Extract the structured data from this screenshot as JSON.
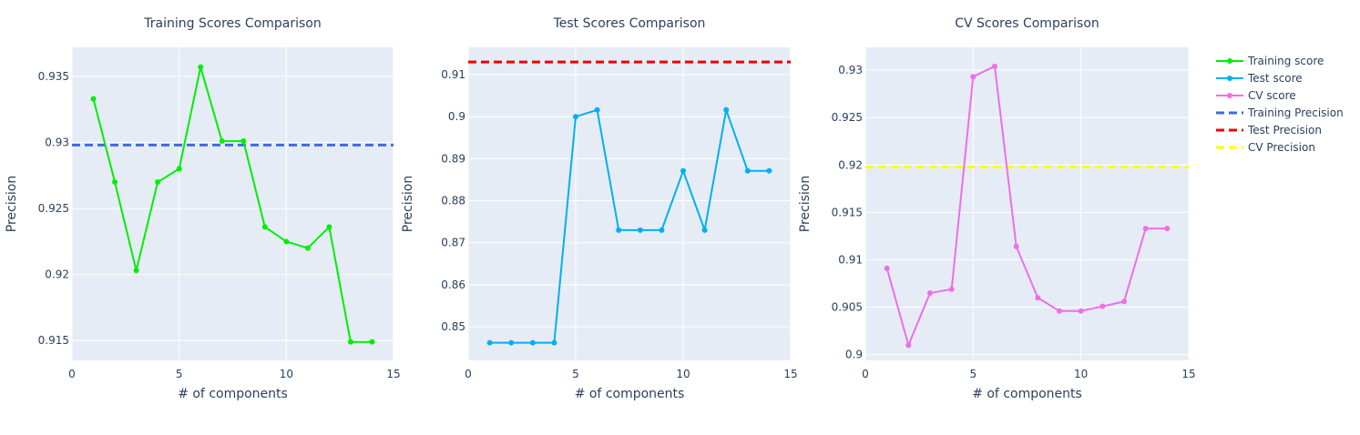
{
  "chart_data": [
    {
      "type": "line",
      "title": "Training Scores Comparison",
      "xlabel": "# of components",
      "ylabel": "Precision",
      "xlim": [
        0,
        15
      ],
      "ylim": [
        0.9135,
        0.9372
      ],
      "xticks": [
        0,
        5,
        10,
        15
      ],
      "xtick_labels": [
        "0",
        "5",
        "10",
        "15"
      ],
      "yticks": [
        0.915,
        0.92,
        0.925,
        0.93,
        0.935
      ],
      "ytick_labels": [
        "0.915",
        "0.92",
        "0.925",
        "0.93",
        "0.935"
      ],
      "grid": true,
      "series": [
        {
          "name": "Training score",
          "color": "#00ee00",
          "x": [
            1,
            2,
            3,
            4,
            5,
            6,
            7,
            8,
            9,
            10,
            11,
            12,
            13,
            14
          ],
          "values": [
            0.9333,
            0.927,
            0.9203,
            0.927,
            0.928,
            0.9357,
            0.9301,
            0.9301,
            0.9236,
            0.9225,
            0.922,
            0.9236,
            0.9149,
            0.9149
          ]
        }
      ],
      "hlines": [
        {
          "name": "Training Precision",
          "value": 0.9298,
          "color": "#4169e1"
        }
      ]
    },
    {
      "type": "line",
      "title": "Test Scores Comparison",
      "xlabel": "# of components",
      "ylabel": "Precision",
      "xlim": [
        0,
        15
      ],
      "ylim": [
        0.842,
        0.9165
      ],
      "xticks": [
        0,
        5,
        10,
        15
      ],
      "xtick_labels": [
        "0",
        "5",
        "10",
        "15"
      ],
      "yticks": [
        0.85,
        0.86,
        0.87,
        0.88,
        0.89,
        0.9,
        0.91
      ],
      "ytick_labels": [
        "0.85",
        "0.86",
        "0.87",
        "0.88",
        "0.89",
        "0.9",
        "0.91"
      ],
      "grid": true,
      "series": [
        {
          "name": "Test score",
          "color": "#00b0ee",
          "x": [
            1,
            2,
            3,
            4,
            5,
            6,
            7,
            8,
            9,
            10,
            11,
            12,
            13,
            14
          ],
          "values": [
            0.8462,
            0.8462,
            0.8462,
            0.8462,
            0.9,
            0.9016,
            0.873,
            0.873,
            0.873,
            0.8871,
            0.873,
            0.9016,
            0.8871,
            0.8871
          ]
        }
      ],
      "hlines": [
        {
          "name": "Test Precision",
          "value": 0.913,
          "color": "#ee0000"
        }
      ]
    },
    {
      "type": "line",
      "title": "CV Scores Comparison",
      "xlabel": "# of components",
      "ylabel": "Precision",
      "xlim": [
        0,
        15
      ],
      "ylim": [
        0.8994,
        0.9324
      ],
      "xticks": [
        0,
        5,
        10,
        15
      ],
      "xtick_labels": [
        "0",
        "5",
        "10",
        "15"
      ],
      "yticks": [
        0.9,
        0.905,
        0.91,
        0.915,
        0.92,
        0.925,
        0.93
      ],
      "ytick_labels": [
        "0.9",
        "0.905",
        "0.91",
        "0.915",
        "0.92",
        "0.925",
        "0.93"
      ],
      "grid": true,
      "series": [
        {
          "name": "CV score",
          "color": "#ee6ee8",
          "x": [
            1,
            2,
            3,
            4,
            5,
            6,
            7,
            8,
            9,
            10,
            11,
            12,
            13,
            14
          ],
          "values": [
            0.9091,
            0.901,
            0.9065,
            0.9069,
            0.9293,
            0.9304,
            0.9114,
            0.906,
            0.9046,
            0.9046,
            0.9051,
            0.9056,
            0.9133,
            0.9133
          ]
        }
      ],
      "hlines": [
        {
          "name": "CV Precision",
          "value": 0.9198,
          "color": "#ffff00"
        }
      ]
    }
  ],
  "legend": {
    "placement": "right",
    "items": [
      {
        "label": "Training score",
        "style": "line-marker",
        "color": "#00ee00"
      },
      {
        "label": "Test score",
        "style": "line-marker",
        "color": "#00b0ee"
      },
      {
        "label": "CV score",
        "style": "line-marker",
        "color": "#ee6ee8"
      },
      {
        "label": "Training Precision",
        "style": "dash",
        "color": "#4169e1"
      },
      {
        "label": "Test Precision",
        "style": "dash",
        "color": "#ee0000"
      },
      {
        "label": "CV Precision",
        "style": "dash",
        "color": "#ffff00"
      }
    ]
  },
  "colors": {
    "plot_bg": "#e5ecf6",
    "grid": "#ffffff",
    "text": "#2a3f5f"
  }
}
